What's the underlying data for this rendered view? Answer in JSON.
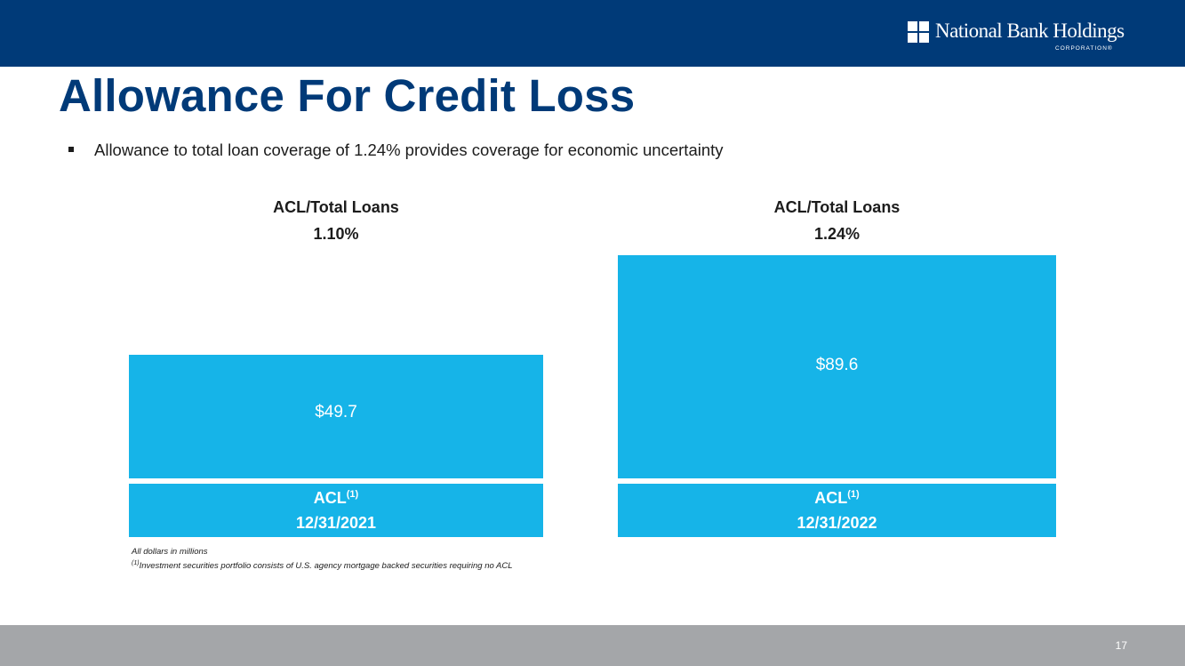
{
  "brand": {
    "name": "National Bank Holdings",
    "sub": "CORPORATION®",
    "color_primary": "#003a78",
    "color_bar": "#16b4e8",
    "color_footer": "#a4a6a9"
  },
  "slide": {
    "title": "Allowance For Credit Loss",
    "bullet": "Allowance to total loan coverage of 1.24% provides coverage for economic uncertainty",
    "page_number": "17"
  },
  "chart_data": {
    "type": "bar",
    "categories": [
      "12/31/2021",
      "12/31/2022"
    ],
    "values": [
      49.7,
      89.6
    ],
    "value_labels": [
      "$49.7",
      "$89.6"
    ],
    "ratio_header": "ACL/Total Loans",
    "ratios": [
      "1.10%",
      "1.24%"
    ],
    "series_label": "ACL",
    "series_footnote_ref": "(1)",
    "units": "All dollars in millions",
    "ylim": [
      0,
      100
    ]
  },
  "footnotes": {
    "line1": "All dollars in millions",
    "line2_ref": "(1)",
    "line2": "Investment securities portfolio consists of U.S. agency mortgage backed securities requiring no ACL"
  }
}
